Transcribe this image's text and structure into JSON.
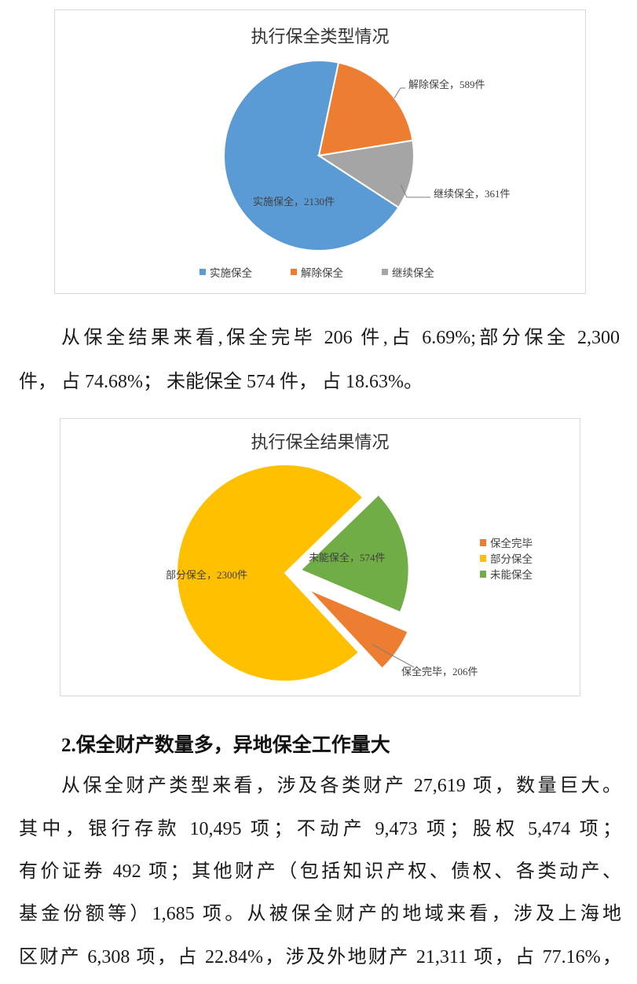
{
  "chart_data": [
    {
      "type": "pie",
      "title": "执行保全类型情况",
      "categories": [
        "实施保全",
        "解除保全",
        "继续保全"
      ],
      "values": [
        2130,
        589,
        361
      ],
      "unit": "件",
      "data_labels": [
        "实施保全，2130件",
        "解除保全，589件",
        "继续保全，361件"
      ],
      "colors": [
        "#5B9BD5",
        "#ED7D31",
        "#A5A5A5"
      ],
      "legend": "bottom"
    },
    {
      "type": "pie",
      "title": "执行保全结果情况",
      "categories": [
        "保全完毕",
        "部分保全",
        "未能保全"
      ],
      "values": [
        206,
        2300,
        574
      ],
      "unit": "件",
      "data_labels": [
        "保全完毕，206件",
        "部分保全，2300件",
        "未能保全，574件"
      ],
      "colors": [
        "#ED7D31",
        "#FFC000",
        "#70AD47"
      ],
      "exploded": [
        "保全完毕",
        "未能保全"
      ],
      "legend": "right"
    }
  ],
  "paragraph1": {
    "lines": [
      "从保全结果来看,保全完毕 206 件,占 6.69%;部分保全 2,300",
      "件， 占 74.68%； 未能保全 574 件， 占 18.63%。"
    ]
  },
  "section_heading": "2.保全财产数量多，异地保全工作量大",
  "paragraph2": {
    "lines": [
      "从保全财产类型来看，涉及各类财产 27,619 项，数量巨大。",
      "其中，银行存款 10,495 项；不动产 9,473 项；股权 5,474 项；",
      "有价证券 492 项；其他财产（包括知识产权、债权、各类动产、",
      "基金份额等）1,685 项。从被保全财产的地域来看，涉及上海地",
      "区财产 6,308 项，占 22.84%，涉及外地财产 21,311 项，占 77.16%，"
    ]
  }
}
